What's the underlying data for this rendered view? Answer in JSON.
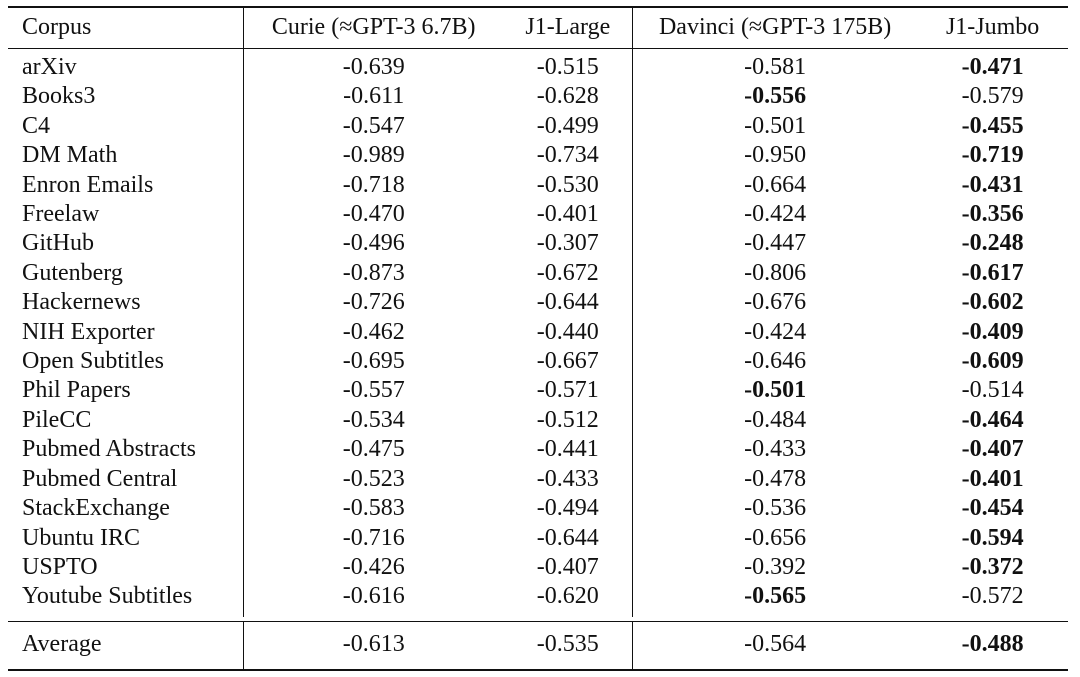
{
  "table": {
    "headers": {
      "corpus": "Corpus",
      "curie": "Curie (≈GPT-3 6.7B)",
      "j1_large": "J1-Large",
      "davinci": "Davinci (≈GPT-3 175B)",
      "j1_jumbo": "J1-Jumbo"
    },
    "rows": [
      {
        "corpus": "arXiv",
        "curie": "-0.639",
        "j1_large": "-0.515",
        "davinci": "-0.581",
        "j1_jumbo": "-0.471",
        "bold": "j1_jumbo"
      },
      {
        "corpus": "Books3",
        "curie": "-0.611",
        "j1_large": "-0.628",
        "davinci": "-0.556",
        "j1_jumbo": "-0.579",
        "bold": "davinci"
      },
      {
        "corpus": "C4",
        "curie": "-0.547",
        "j1_large": "-0.499",
        "davinci": "-0.501",
        "j1_jumbo": "-0.455",
        "bold": "j1_jumbo"
      },
      {
        "corpus": "DM Math",
        "curie": "-0.989",
        "j1_large": "-0.734",
        "davinci": "-0.950",
        "j1_jumbo": "-0.719",
        "bold": "j1_jumbo"
      },
      {
        "corpus": "Enron Emails",
        "curie": "-0.718",
        "j1_large": "-0.530",
        "davinci": "-0.664",
        "j1_jumbo": "-0.431",
        "bold": "j1_jumbo"
      },
      {
        "corpus": "Freelaw",
        "curie": "-0.470",
        "j1_large": "-0.401",
        "davinci": "-0.424",
        "j1_jumbo": "-0.356",
        "bold": "j1_jumbo"
      },
      {
        "corpus": "GitHub",
        "curie": "-0.496",
        "j1_large": "-0.307",
        "davinci": "-0.447",
        "j1_jumbo": "-0.248",
        "bold": "j1_jumbo"
      },
      {
        "corpus": "Gutenberg",
        "curie": "-0.873",
        "j1_large": "-0.672",
        "davinci": "-0.806",
        "j1_jumbo": "-0.617",
        "bold": "j1_jumbo"
      },
      {
        "corpus": "Hackernews",
        "curie": "-0.726",
        "j1_large": "-0.644",
        "davinci": "-0.676",
        "j1_jumbo": "-0.602",
        "bold": "j1_jumbo"
      },
      {
        "corpus": "NIH Exporter",
        "curie": "-0.462",
        "j1_large": "-0.440",
        "davinci": "-0.424",
        "j1_jumbo": "-0.409",
        "bold": "j1_jumbo"
      },
      {
        "corpus": "Open Subtitles",
        "curie": "-0.695",
        "j1_large": "-0.667",
        "davinci": "-0.646",
        "j1_jumbo": "-0.609",
        "bold": "j1_jumbo"
      },
      {
        "corpus": "Phil Papers",
        "curie": "-0.557",
        "j1_large": "-0.571",
        "davinci": "-0.501",
        "j1_jumbo": "-0.514",
        "bold": "davinci"
      },
      {
        "corpus": "PileCC",
        "curie": "-0.534",
        "j1_large": "-0.512",
        "davinci": "-0.484",
        "j1_jumbo": "-0.464",
        "bold": "j1_jumbo"
      },
      {
        "corpus": "Pubmed Abstracts",
        "curie": "-0.475",
        "j1_large": "-0.441",
        "davinci": "-0.433",
        "j1_jumbo": "-0.407",
        "bold": "j1_jumbo"
      },
      {
        "corpus": "Pubmed Central",
        "curie": "-0.523",
        "j1_large": "-0.433",
        "davinci": "-0.478",
        "j1_jumbo": "-0.401",
        "bold": "j1_jumbo"
      },
      {
        "corpus": "StackExchange",
        "curie": "-0.583",
        "j1_large": "-0.494",
        "davinci": "-0.536",
        "j1_jumbo": "-0.454",
        "bold": "j1_jumbo"
      },
      {
        "corpus": "Ubuntu IRC",
        "curie": "-0.716",
        "j1_large": "-0.644",
        "davinci": "-0.656",
        "j1_jumbo": "-0.594",
        "bold": "j1_jumbo"
      },
      {
        "corpus": "USPTO",
        "curie": "-0.426",
        "j1_large": "-0.407",
        "davinci": "-0.392",
        "j1_jumbo": "-0.372",
        "bold": "j1_jumbo"
      },
      {
        "corpus": "Youtube Subtitles",
        "curie": "-0.616",
        "j1_large": "-0.620",
        "davinci": "-0.565",
        "j1_jumbo": "-0.572",
        "bold": "davinci"
      }
    ],
    "average": {
      "corpus": "Average",
      "curie": "-0.613",
      "j1_large": "-0.535",
      "davinci": "-0.564",
      "j1_jumbo": "-0.488",
      "bold": "j1_jumbo"
    }
  }
}
